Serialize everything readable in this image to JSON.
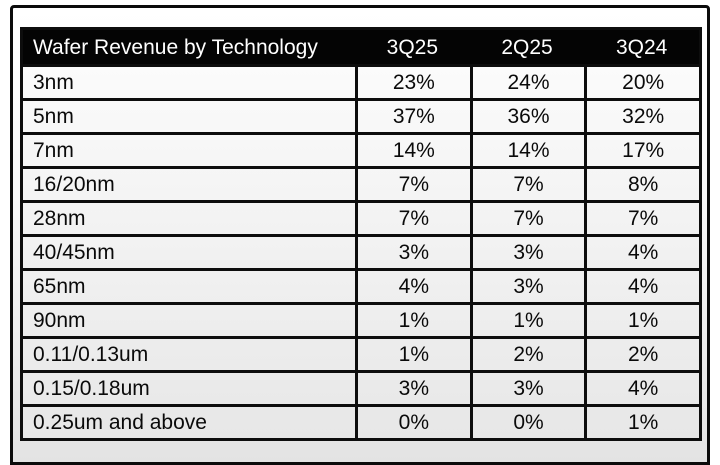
{
  "table": {
    "title": "Wafer Revenue by Technology",
    "columns": [
      "3Q25",
      "2Q25",
      "3Q24"
    ],
    "rows": [
      {
        "label": "3nm",
        "values": [
          "23%",
          "24%",
          "20%"
        ]
      },
      {
        "label": "5nm",
        "values": [
          "37%",
          "36%",
          "32%"
        ]
      },
      {
        "label": "7nm",
        "values": [
          "14%",
          "14%",
          "17%"
        ]
      },
      {
        "label": "16/20nm",
        "values": [
          "7%",
          "7%",
          "8%"
        ]
      },
      {
        "label": "28nm",
        "values": [
          "7%",
          "7%",
          "7%"
        ]
      },
      {
        "label": "40/45nm",
        "values": [
          "3%",
          "3%",
          "4%"
        ]
      },
      {
        "label": "65nm",
        "values": [
          "4%",
          "3%",
          "4%"
        ]
      },
      {
        "label": "90nm",
        "values": [
          "1%",
          "1%",
          "1%"
        ]
      },
      {
        "label": "0.11/0.13um",
        "values": [
          "1%",
          "2%",
          "2%"
        ]
      },
      {
        "label": "0.15/0.18um",
        "values": [
          "3%",
          "3%",
          "4%"
        ]
      },
      {
        "label": "0.25um and above",
        "values": [
          "0%",
          "0%",
          "1%"
        ]
      }
    ]
  },
  "chart_data": {
    "type": "table",
    "title": "Wafer Revenue by Technology",
    "columns": [
      "3Q25",
      "2Q25",
      "3Q24"
    ],
    "row_labels": [
      "3nm",
      "5nm",
      "7nm",
      "16/20nm",
      "28nm",
      "40/45nm",
      "65nm",
      "90nm",
      "0.11/0.13um",
      "0.15/0.18um",
      "0.25um and above"
    ],
    "values_percent": [
      [
        23,
        24,
        20
      ],
      [
        37,
        36,
        32
      ],
      [
        14,
        14,
        17
      ],
      [
        7,
        7,
        8
      ],
      [
        7,
        7,
        7
      ],
      [
        3,
        3,
        4
      ],
      [
        4,
        3,
        4
      ],
      [
        1,
        1,
        1
      ],
      [
        1,
        2,
        2
      ],
      [
        3,
        3,
        4
      ],
      [
        0,
        0,
        1
      ]
    ],
    "units": "% of wafer revenue"
  },
  "colors": {
    "header_bg": "#040404",
    "header_text": "#ffffff",
    "row_text": "#0a0a0a",
    "border": "#0d0d0d"
  }
}
